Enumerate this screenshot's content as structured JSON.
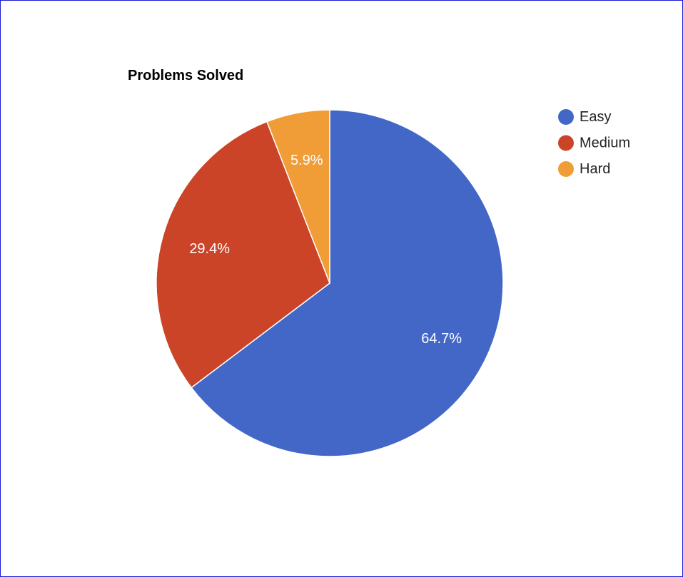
{
  "chart_data": {
    "type": "pie",
    "title": "Problems Solved",
    "legend_position": "top-right",
    "slices": [
      {
        "name": "Easy",
        "value": 64.7,
        "label": "64.7%",
        "color": "#4267c6"
      },
      {
        "name": "Medium",
        "value": 29.4,
        "label": "29.4%",
        "color": "#cc4427"
      },
      {
        "name": "Hard",
        "value": 5.9,
        "label": "5.9%",
        "color": "#f09d38"
      }
    ]
  }
}
